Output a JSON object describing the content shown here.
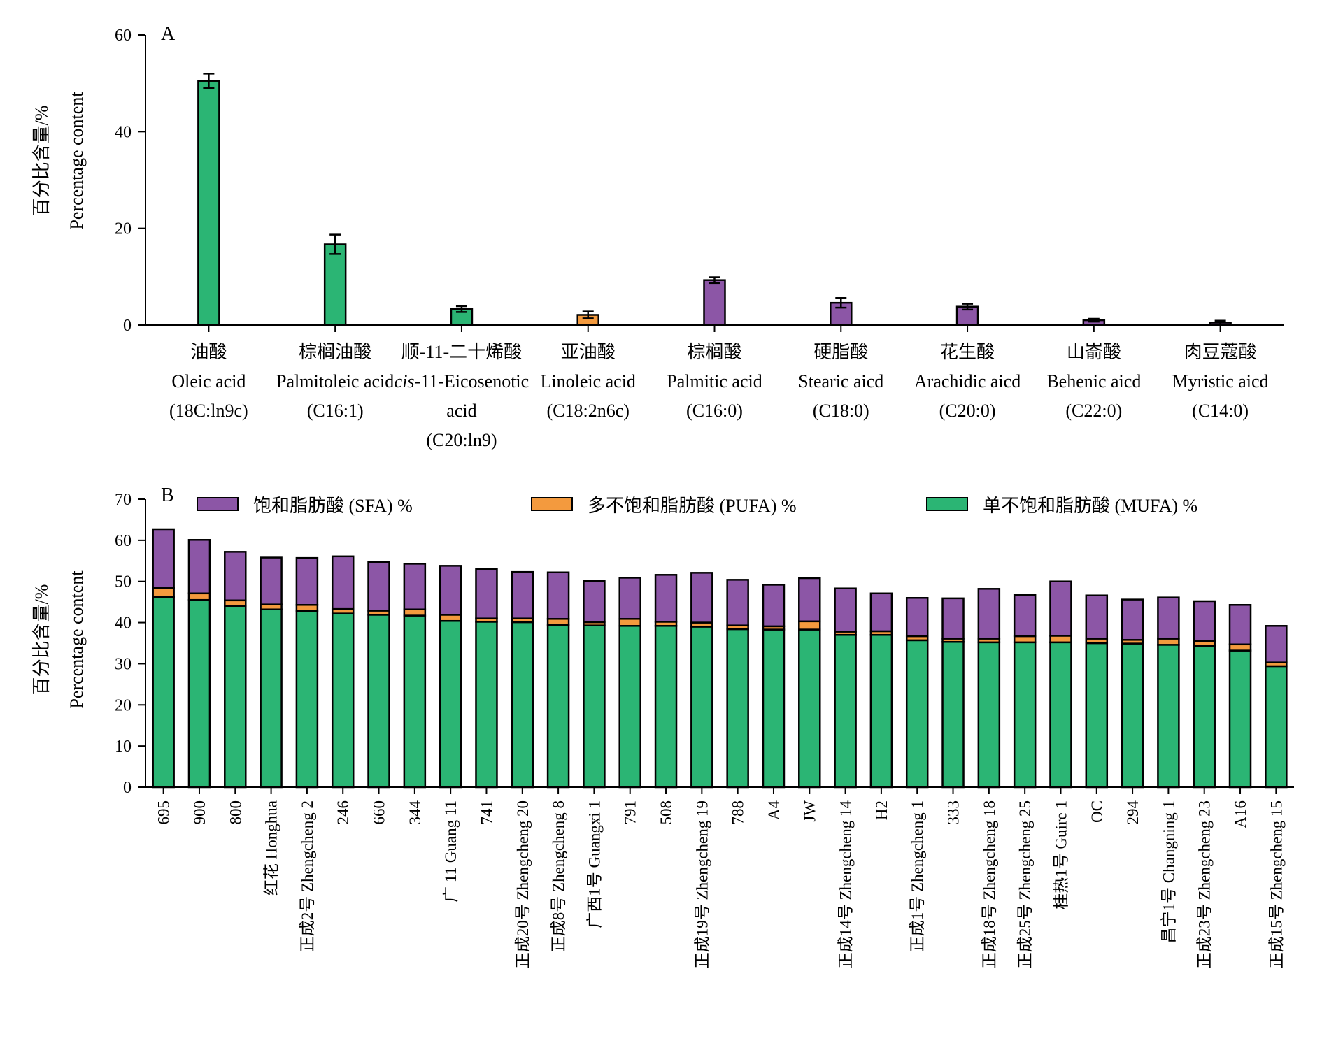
{
  "chart_data": [
    {
      "type": "bar",
      "panel_label": "A",
      "ylabel_cn": "百分比含量/%",
      "ylabel_en": "Percentage content",
      "ylim": [
        0,
        60
      ],
      "yticks": [
        0,
        20,
        40,
        60
      ],
      "categories": [
        {
          "cn": "油酸",
          "en": [
            "Oleic acid",
            "(18C:ln9c)"
          ],
          "group": "MUFA"
        },
        {
          "cn": "棕榈油酸",
          "en": [
            "Palmitoleic acid",
            "(C16:1)"
          ],
          "group": "MUFA"
        },
        {
          "cn": "顺-11-二十烯酸",
          "en_prefix": "cis",
          "en": [
            "-11-Eicosenotic",
            "acid",
            "(C20:ln9)"
          ],
          "group": "MUFA"
        },
        {
          "cn": "亚油酸",
          "en": [
            "Linoleic acid",
            "(C18:2n6c)"
          ],
          "group": "PUFA"
        },
        {
          "cn": "棕榈酸",
          "en": [
            "Palmitic acid",
            "(C16:0)"
          ],
          "group": "SFA"
        },
        {
          "cn": "硬脂酸",
          "en": [
            "Stearic aicd",
            "(C18:0)"
          ],
          "group": "SFA"
        },
        {
          "cn": "花生酸",
          "en": [
            "Arachidic aicd",
            "(C20:0)"
          ],
          "group": "SFA"
        },
        {
          "cn": "山嵛酸",
          "en": [
            "Behenic aicd",
            "(C22:0)"
          ],
          "group": "SFA"
        },
        {
          "cn": "肉豆蔻酸",
          "en": [
            "Myristic aicd",
            "(C14:0)"
          ],
          "group": "SFA"
        }
      ],
      "values": [
        50.5,
        16.7,
        3.3,
        2.1,
        9.3,
        4.6,
        3.8,
        1.0,
        0.5
      ],
      "errors": [
        1.5,
        2.0,
        0.6,
        0.7,
        0.6,
        1.0,
        0.6,
        0.3,
        0.4
      ],
      "colors": {
        "MUFA": "#2bb574",
        "PUFA": "#f39a3e",
        "SFA": "#8c56a6"
      }
    },
    {
      "type": "bar",
      "stacked": true,
      "panel_label": "B",
      "ylabel_cn": "百分比含量/%",
      "ylabel_en": "Percentage content",
      "ylim": [
        0,
        70
      ],
      "yticks": [
        0,
        10,
        20,
        30,
        40,
        50,
        60,
        70
      ],
      "legend_position": "top",
      "legend": [
        {
          "key": "SFA",
          "label": "饱和脂肪酸 (SFA) %",
          "color": "#8c56a6"
        },
        {
          "key": "PUFA",
          "label": "多不饱和脂肪酸 (PUFA) %",
          "color": "#f39a3e"
        },
        {
          "key": "MUFA",
          "label": "单不饱和脂肪酸 (MUFA) %",
          "color": "#2bb574"
        }
      ],
      "categories": [
        "695",
        "900",
        "800",
        "红花 Honghua",
        "正成2号 Zhengcheng 2",
        "246",
        "660",
        "344",
        "广 11 Guang 11",
        "741",
        "正成20号 Zhengcheng 20",
        "正成8号 Zhengcheng 8",
        "广西1号 Guangxi 1",
        "791",
        "508",
        "正成19号 Zhengcheng 19",
        "788",
        "A4",
        "JW",
        "正成14号 Zhengcheng 14",
        "H2",
        "正成1号 Zhengcheng 1",
        "333",
        "正成18号 Zhengcheng 18",
        "正成25号 Zhengcheng 25",
        "桂热1号 Guire 1",
        "OC",
        "294",
        "昌宁1号 Changning 1",
        "正成23号 Zhengcheng 23",
        "A16",
        "正成15号 Zhengcheng 15"
      ],
      "series": [
        {
          "key": "MUFA",
          "values": [
            46.2,
            45.5,
            44.0,
            43.2,
            42.8,
            42.2,
            41.9,
            41.7,
            40.4,
            40.2,
            40.1,
            39.4,
            39.3,
            39.2,
            39.2,
            39.0,
            38.4,
            38.3,
            38.3,
            37.0,
            37.0,
            35.7,
            35.3,
            35.2,
            35.2,
            35.2,
            35.0,
            34.9,
            34.6,
            34.3,
            33.2,
            29.4
          ]
        },
        {
          "key": "PUFA",
          "values": [
            2.2,
            1.6,
            1.4,
            1.2,
            1.5,
            1.1,
            1.0,
            1.5,
            1.5,
            0.8,
            0.9,
            1.5,
            0.8,
            1.7,
            1.0,
            1.0,
            0.9,
            0.8,
            2.0,
            0.8,
            0.9,
            1.0,
            0.8,
            0.9,
            1.5,
            1.6,
            1.1,
            0.9,
            1.5,
            1.2,
            1.5,
            0.9
          ]
        },
        {
          "key": "SFA",
          "values": [
            14.3,
            13.0,
            11.8,
            11.4,
            11.4,
            12.8,
            11.8,
            11.1,
            11.9,
            12.0,
            11.3,
            11.3,
            10.0,
            10.0,
            11.4,
            12.1,
            11.1,
            10.1,
            10.5,
            10.5,
            9.2,
            9.3,
            9.8,
            12.1,
            10.0,
            13.2,
            10.5,
            9.8,
            10.0,
            9.7,
            9.6,
            8.9
          ]
        }
      ]
    }
  ]
}
